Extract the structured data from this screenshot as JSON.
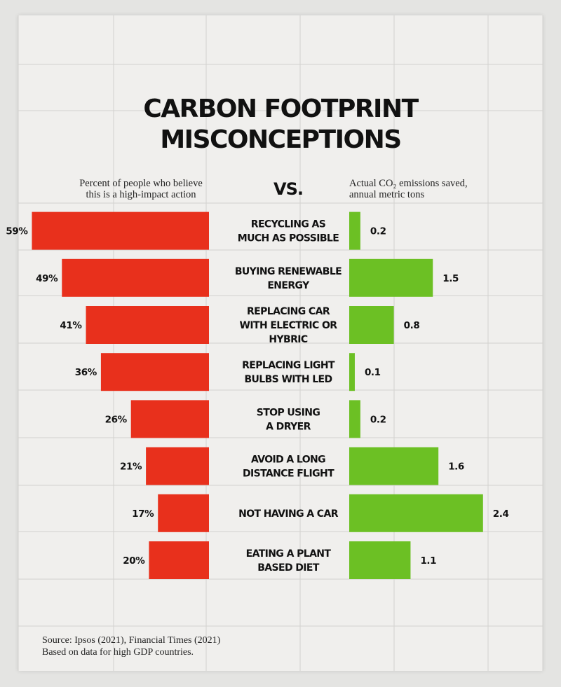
{
  "title_lines": [
    "CARBON FOOTPRINT",
    "MISCONCEPTIONS"
  ],
  "left_header_lines": [
    "Percent of people who believe",
    "this is a high-impact action"
  ],
  "vs_label": "VS.",
  "right_header_lines": [
    "Actual CO₂ emissions saved,",
    "annual metric tons"
  ],
  "source_lines": [
    "Source: Ipsos (2021), Financial Times (2021)",
    "Based on data for high GDP countries."
  ],
  "colors": {
    "belief": "#e8301c",
    "actual": "#6cc024",
    "background": "#f0efed",
    "grid": "#d2d2cf"
  },
  "chart_data": {
    "type": "bar",
    "categories": [
      [
        "RECYCLING AS",
        "MUCH AS POSSIBLE"
      ],
      [
        "BUYING RENEWABLE",
        "ENERGY"
      ],
      [
        "REPLACING CAR",
        "WITH ELECTRIC OR",
        "HYBRIC"
      ],
      [
        "REPLACING LIGHT",
        "BULBS WITH LED"
      ],
      [
        "STOP USING",
        "A DRYER"
      ],
      [
        "AVOID A LONG",
        "DISTANCE FLIGHT"
      ],
      [
        "NOT HAVING A CAR"
      ],
      [
        "EATING A PLANT",
        "BASED DIET"
      ]
    ],
    "series": [
      {
        "values": [
          59,
          49,
          41,
          36,
          26,
          21,
          17,
          20
        ],
        "labels": [
          "59%",
          "49%",
          "41%",
          "36%",
          "26%",
          "21%",
          "17%",
          "20%"
        ]
      },
      {
        "values": [
          0.2,
          1.5,
          0.8,
          0.1,
          0.2,
          1.6,
          2.4,
          1.1
        ],
        "labels": [
          "0.2",
          "1.5",
          "0.8",
          "0.1",
          "0.2",
          "1.6",
          "2.4",
          "1.1"
        ]
      }
    ],
    "grid": true
  }
}
